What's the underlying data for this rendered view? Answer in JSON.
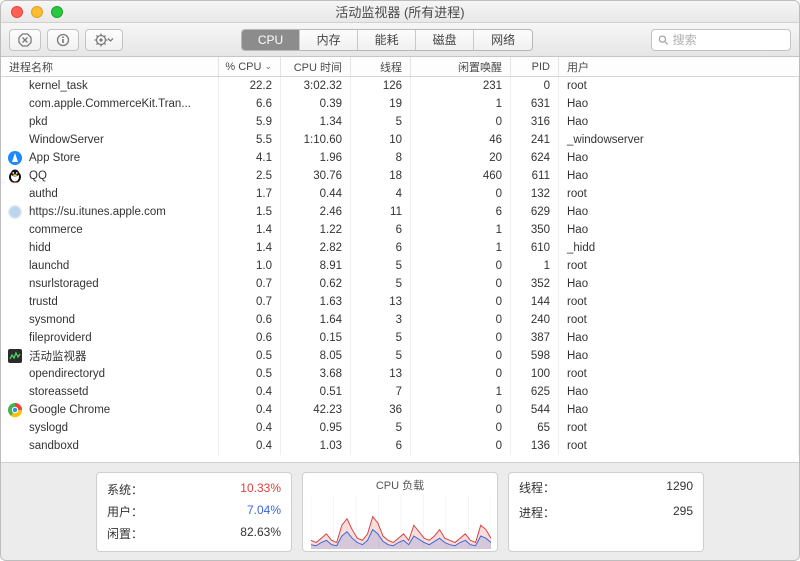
{
  "window": {
    "title": "活动监视器 (所有进程)"
  },
  "toolbar": {
    "tabs": [
      "CPU",
      "内存",
      "能耗",
      "磁盘",
      "网络"
    ],
    "active_tab": 0,
    "search_placeholder": "搜索"
  },
  "columns": {
    "name": "进程名称",
    "cpu": "% CPU",
    "cpu_time": "CPU 时间",
    "threads": "线程",
    "idle_wake": "闲置唤醒",
    "pid": "PID",
    "user": "用户"
  },
  "rows": [
    {
      "icon": null,
      "name": "kernel_task",
      "cpu": "22.2",
      "cpu_time": "3:02.32",
      "threads": "126",
      "idle": "231",
      "pid": "0",
      "user": "root"
    },
    {
      "icon": null,
      "name": "com.apple.CommerceKit.Tran...",
      "cpu": "6.6",
      "cpu_time": "0.39",
      "threads": "19",
      "idle": "1",
      "pid": "631",
      "user": "Hao"
    },
    {
      "icon": null,
      "name": "pkd",
      "cpu": "5.9",
      "cpu_time": "1.34",
      "threads": "5",
      "idle": "0",
      "pid": "316",
      "user": "Hao"
    },
    {
      "icon": null,
      "name": "WindowServer",
      "cpu": "5.5",
      "cpu_time": "1:10.60",
      "threads": "10",
      "idle": "46",
      "pid": "241",
      "user": "_windowserver"
    },
    {
      "icon": "appstore",
      "name": "App Store",
      "cpu": "4.1",
      "cpu_time": "1.96",
      "threads": "8",
      "idle": "20",
      "pid": "624",
      "user": "Hao"
    },
    {
      "icon": "qq",
      "name": "QQ",
      "cpu": "2.5",
      "cpu_time": "30.76",
      "threads": "18",
      "idle": "460",
      "pid": "611",
      "user": "Hao"
    },
    {
      "icon": null,
      "name": "authd",
      "cpu": "1.7",
      "cpu_time": "0.44",
      "threads": "4",
      "idle": "0",
      "pid": "132",
      "user": "root"
    },
    {
      "icon": "safari",
      "name": "https://su.itunes.apple.com",
      "cpu": "1.5",
      "cpu_time": "2.46",
      "threads": "11",
      "idle": "6",
      "pid": "629",
      "user": "Hao"
    },
    {
      "icon": null,
      "name": "commerce",
      "cpu": "1.4",
      "cpu_time": "1.22",
      "threads": "6",
      "idle": "1",
      "pid": "350",
      "user": "Hao"
    },
    {
      "icon": null,
      "name": "hidd",
      "cpu": "1.4",
      "cpu_time": "2.82",
      "threads": "6",
      "idle": "1",
      "pid": "610",
      "user": "_hidd"
    },
    {
      "icon": null,
      "name": "launchd",
      "cpu": "1.0",
      "cpu_time": "8.91",
      "threads": "5",
      "idle": "0",
      "pid": "1",
      "user": "root"
    },
    {
      "icon": null,
      "name": "nsurlstoraged",
      "cpu": "0.7",
      "cpu_time": "0.62",
      "threads": "5",
      "idle": "0",
      "pid": "352",
      "user": "Hao"
    },
    {
      "icon": null,
      "name": "trustd",
      "cpu": "0.7",
      "cpu_time": "1.63",
      "threads": "13",
      "idle": "0",
      "pid": "144",
      "user": "root"
    },
    {
      "icon": null,
      "name": "sysmond",
      "cpu": "0.6",
      "cpu_time": "1.64",
      "threads": "3",
      "idle": "0",
      "pid": "240",
      "user": "root"
    },
    {
      "icon": null,
      "name": "fileproviderd",
      "cpu": "0.6",
      "cpu_time": "0.15",
      "threads": "5",
      "idle": "0",
      "pid": "387",
      "user": "Hao"
    },
    {
      "icon": "activity",
      "name": "活动监视器",
      "cpu": "0.5",
      "cpu_time": "8.05",
      "threads": "5",
      "idle": "0",
      "pid": "598",
      "user": "Hao"
    },
    {
      "icon": null,
      "name": "opendirectoryd",
      "cpu": "0.5",
      "cpu_time": "3.68",
      "threads": "13",
      "idle": "0",
      "pid": "100",
      "user": "root"
    },
    {
      "icon": null,
      "name": "storeassetd",
      "cpu": "0.4",
      "cpu_time": "0.51",
      "threads": "7",
      "idle": "1",
      "pid": "625",
      "user": "Hao"
    },
    {
      "icon": "chrome",
      "name": "Google Chrome",
      "cpu": "0.4",
      "cpu_time": "42.23",
      "threads": "36",
      "idle": "0",
      "pid": "544",
      "user": "Hao"
    },
    {
      "icon": null,
      "name": "syslogd",
      "cpu": "0.4",
      "cpu_time": "0.95",
      "threads": "5",
      "idle": "0",
      "pid": "65",
      "user": "root"
    },
    {
      "icon": null,
      "name": "sandboxd",
      "cpu": "0.4",
      "cpu_time": "1.03",
      "threads": "6",
      "idle": "0",
      "pid": "136",
      "user": "root"
    }
  ],
  "cpu_panel": {
    "system_label": "系统：",
    "system_pct": "10.33%",
    "user_label": "用户：",
    "user_pct": "7.04%",
    "idle_label": "闲置：",
    "idle_pct": "82.63%",
    "chart_title": "CPU 负载",
    "threads_label": "线程：",
    "threads_val": "1290",
    "procs_label": "进程：",
    "procs_val": "295"
  },
  "chart": {
    "width": 180,
    "height": 56,
    "system_color": "#d8423c",
    "user_color": "#3a67d8",
    "grid_color": "#e8e8e8",
    "sys_points": [
      8,
      6,
      10,
      14,
      8,
      6,
      22,
      28,
      18,
      10,
      8,
      14,
      30,
      24,
      12,
      8,
      6,
      10,
      14,
      8,
      22,
      16,
      10,
      8,
      12,
      18,
      10,
      8,
      6,
      10,
      14,
      8,
      6,
      22,
      18,
      10
    ],
    "usr_points": [
      4,
      3,
      6,
      8,
      4,
      3,
      12,
      16,
      10,
      6,
      4,
      8,
      18,
      14,
      7,
      4,
      3,
      6,
      8,
      4,
      12,
      9,
      6,
      4,
      7,
      10,
      6,
      4,
      3,
      6,
      8,
      4,
      3,
      12,
      10,
      6
    ]
  }
}
